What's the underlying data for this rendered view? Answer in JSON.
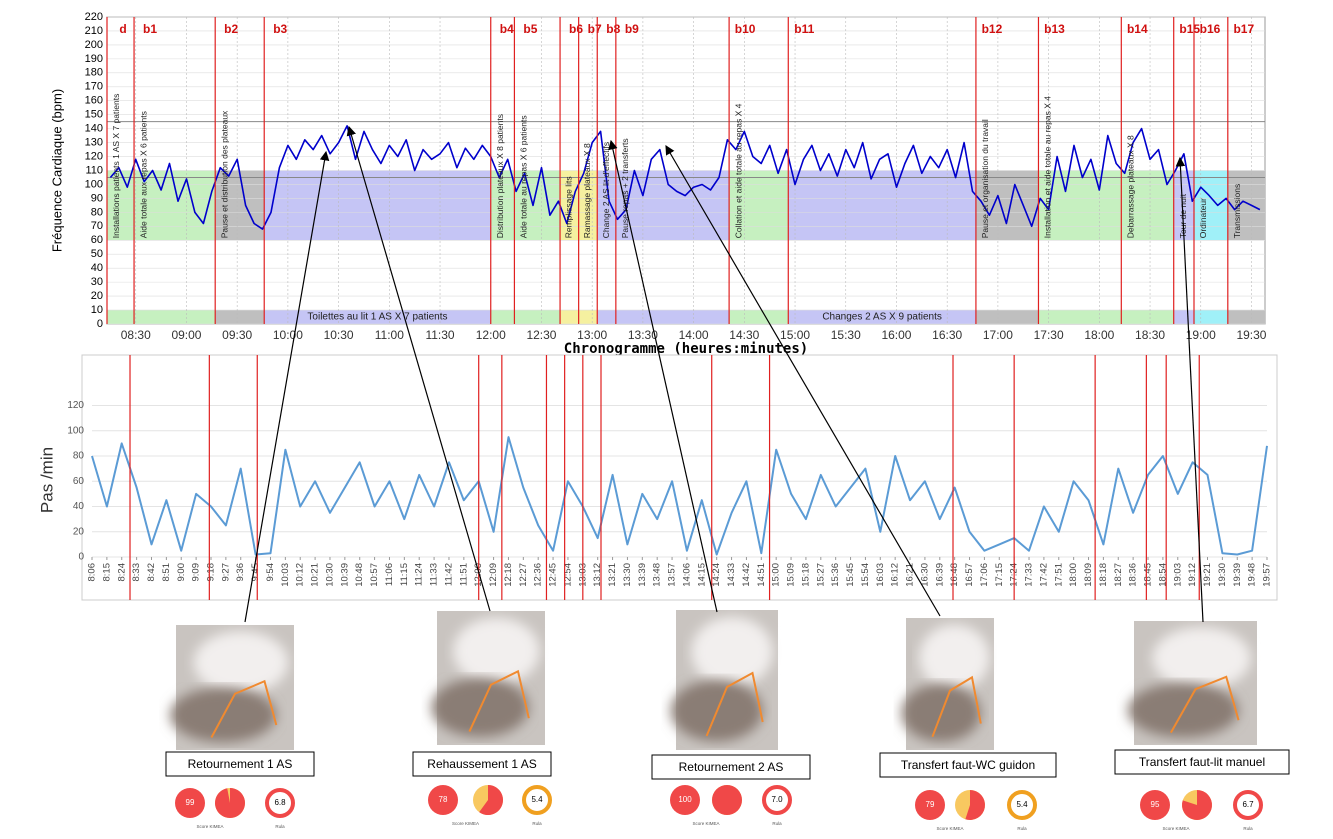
{
  "chart_data": [
    {
      "type": "line",
      "y_label": "Fréquence Cardiaque (bpm)",
      "x_label": "Chronogramme (heures:minutes)",
      "color": "#0000cc",
      "grid": true,
      "xlim": [
        "08:13",
        "19:38"
      ],
      "xticks": [
        "08:30",
        "09:00",
        "09:30",
        "10:00",
        "10:30",
        "11:00",
        "11:30",
        "12:00",
        "12:30",
        "13:00",
        "13:30",
        "14:00",
        "14:30",
        "15:00",
        "15:30",
        "16:00",
        "16:30",
        "17:00",
        "17:30",
        "18:00",
        "18:30",
        "19:00",
        "19:30"
      ],
      "ylim": [
        0,
        220
      ],
      "yticks": [
        0,
        10,
        20,
        30,
        40,
        50,
        60,
        70,
        80,
        90,
        100,
        110,
        120,
        130,
        140,
        150,
        160,
        170,
        180,
        190,
        200,
        210,
        220
      ],
      "hlines": [
        145,
        105
      ],
      "band_range": [
        60,
        110
      ],
      "strip_range": [
        0,
        10
      ],
      "phases": [
        {
          "label": "d",
          "start": "08:13",
          "color": "#c6f0c0",
          "activity": "Installations patients 1 AS X 7 patients"
        },
        {
          "label": "b1",
          "start": "08:29",
          "color": "#c6f0c0",
          "activity": "Aide totale aux repas X 6 patients"
        },
        {
          "label": "b2",
          "start": "09:17",
          "color": "#bfbfbf",
          "activity": "Pause et distribution des plateaux"
        },
        {
          "label": "b3",
          "start": "09:46",
          "color": "#c5c5f5",
          "strip_label": "Toilettes au lit 1 AS X 7 patients"
        },
        {
          "label": "b4",
          "start": "12:00",
          "color": "#c6f0c0",
          "activity": "Distribution plateaux X 8 patients"
        },
        {
          "label": "b5",
          "start": "12:14",
          "color": "#c6f0c0",
          "activity": "Aide totale au repas X 6 patients"
        },
        {
          "label": "b6",
          "start": "12:41",
          "color": "#f5f0a0",
          "activity": "Remplissage lits"
        },
        {
          "label": "b7",
          "start": "12:52",
          "color": "#f5f0a0",
          "activity": "Ramassage plateaux X 8"
        },
        {
          "label": "b8",
          "start": "13:03",
          "color": "#c5c5f5",
          "activity": "Change 2 AS lit d'effectifs"
        },
        {
          "label": "b9",
          "start": "13:14",
          "color": "#c5c5f5",
          "activity": "Pause repas + 2 transferts"
        },
        {
          "label": "b10",
          "start": "14:21",
          "color": "#c6f0c0",
          "activity": "Collation et aide totale au repas X 4"
        },
        {
          "label": "b11",
          "start": "14:56",
          "color": "#c5c5f5",
          "strip_label": "Changes 2 AS X 9 patients"
        },
        {
          "label": "b12",
          "start": "16:47",
          "color": "#bfbfbf",
          "activity": "Pause et organisation du travail"
        },
        {
          "label": "b13",
          "start": "17:24",
          "color": "#c6f0c0",
          "activity": "Installation et aide totale au repas X 4"
        },
        {
          "label": "b14",
          "start": "18:13",
          "color": "#c6f0c0",
          "activity": "Debarrassage plateaux X 8"
        },
        {
          "label": "b15",
          "start": "18:44",
          "color": "#c5c5f5",
          "activity": "Tour de nuit"
        },
        {
          "label": "b16",
          "start": "18:56",
          "color": "#a0f0f8",
          "activity": "Ordinateur"
        },
        {
          "label": "b17",
          "start": "19:16",
          "color": "#bfbfbf",
          "activity": "Transmissions"
        }
      ],
      "x": [
        "08:15",
        "08:20",
        "08:25",
        "08:30",
        "08:35",
        "08:40",
        "08:45",
        "08:50",
        "08:55",
        "09:00",
        "09:05",
        "09:10",
        "09:15",
        "09:20",
        "09:25",
        "09:30",
        "09:35",
        "09:40",
        "09:45",
        "09:50",
        "09:55",
        "10:00",
        "10:05",
        "10:10",
        "10:15",
        "10:20",
        "10:25",
        "10:30",
        "10:35",
        "10:40",
        "10:45",
        "10:50",
        "10:55",
        "11:00",
        "11:05",
        "11:10",
        "11:15",
        "11:20",
        "11:25",
        "11:30",
        "11:35",
        "11:40",
        "11:45",
        "11:50",
        "11:55",
        "12:00",
        "12:05",
        "12:10",
        "12:15",
        "12:20",
        "12:25",
        "12:30",
        "12:35",
        "12:40",
        "12:45",
        "12:50",
        "12:55",
        "13:00",
        "13:05",
        "13:10",
        "13:15",
        "13:20",
        "13:25",
        "13:30",
        "13:35",
        "13:40",
        "13:45",
        "13:50",
        "13:55",
        "14:00",
        "14:05",
        "14:10",
        "14:15",
        "14:20",
        "14:25",
        "14:30",
        "14:35",
        "14:40",
        "14:45",
        "14:50",
        "14:55",
        "15:00",
        "15:05",
        "15:10",
        "15:15",
        "15:20",
        "15:25",
        "15:30",
        "15:35",
        "15:40",
        "15:45",
        "15:50",
        "15:55",
        "16:00",
        "16:05",
        "16:10",
        "16:15",
        "16:20",
        "16:25",
        "16:30",
        "16:35",
        "16:40",
        "16:45",
        "16:50",
        "16:55",
        "17:00",
        "17:05",
        "17:10",
        "17:15",
        "17:20",
        "17:25",
        "17:30",
        "17:35",
        "17:40",
        "17:45",
        "17:50",
        "17:55",
        "18:00",
        "18:05",
        "18:10",
        "18:15",
        "18:20",
        "18:25",
        "18:30",
        "18:35",
        "18:40",
        "18:45",
        "18:50",
        "18:55",
        "19:00",
        "19:05",
        "19:10",
        "19:15",
        "19:20",
        "19:25",
        "19:30",
        "19:35"
      ],
      "values": [
        105,
        112,
        98,
        118,
        102,
        110,
        96,
        115,
        88,
        104,
        80,
        72,
        95,
        112,
        106,
        118,
        85,
        72,
        68,
        80,
        112,
        128,
        118,
        132,
        125,
        135,
        122,
        130,
        142,
        118,
        138,
        125,
        115,
        128,
        120,
        132,
        110,
        125,
        118,
        122,
        130,
        112,
        126,
        118,
        128,
        120,
        105,
        118,
        95,
        108,
        85,
        112,
        78,
        88,
        72,
        95,
        108,
        130,
        138,
        88,
        75,
        82,
        110,
        92,
        118,
        125,
        100,
        95,
        92,
        98,
        100,
        96,
        105,
        132,
        125,
        138,
        120,
        115,
        128,
        108,
        125,
        100,
        118,
        128,
        110,
        122,
        106,
        125,
        112,
        130,
        104,
        118,
        122,
        98,
        115,
        128,
        108,
        120,
        112,
        125,
        105,
        130,
        95,
        88,
        78,
        92,
        72,
        100,
        85,
        70,
        90,
        82,
        120,
        95,
        128,
        105,
        118,
        96,
        135,
        115,
        108,
        130,
        140,
        118,
        125,
        100,
        110,
        122,
        88,
        98,
        92,
        85,
        90,
        82,
        88,
        85,
        82
      ]
    },
    {
      "type": "line",
      "y_label": "Pas /min",
      "color": "#5b9bd5",
      "grid": true,
      "xlim": [
        "8:06",
        "19:57"
      ],
      "ylim": [
        0,
        160
      ],
      "yticks": [
        0,
        20,
        40,
        60,
        80,
        100,
        120
      ],
      "xticks": [
        "8:06",
        "8:15",
        "8:24",
        "8:33",
        "8:42",
        "8:51",
        "9:00",
        "9:09",
        "9:18",
        "9:27",
        "9:36",
        "9:45",
        "9:54",
        "10:03",
        "10:12",
        "10:21",
        "10:30",
        "10:39",
        "10:48",
        "10:57",
        "11:06",
        "11:15",
        "11:24",
        "11:33",
        "11:42",
        "11:51",
        "12:00",
        "12:09",
        "12:18",
        "12:27",
        "12:36",
        "12:45",
        "12:54",
        "13:03",
        "13:12",
        "13:21",
        "13:30",
        "13:39",
        "13:48",
        "13:57",
        "14:06",
        "14:15",
        "14:24",
        "14:33",
        "14:42",
        "14:51",
        "15:00",
        "15:09",
        "15:18",
        "15:27",
        "15:36",
        "15:45",
        "15:54",
        "16:03",
        "16:12",
        "16:21",
        "16:30",
        "16:39",
        "16:48",
        "16:57",
        "17:06",
        "17:15",
        "17:24",
        "17:33",
        "17:42",
        "17:51",
        "18:00",
        "18:09",
        "18:18",
        "18:27",
        "18:36",
        "18:45",
        "18:54",
        "19:03",
        "19:12",
        "19:21",
        "19:30",
        "19:39",
        "19:48",
        "19:57"
      ],
      "x": [
        "8:06",
        "8:15",
        "8:24",
        "8:33",
        "8:42",
        "8:51",
        "9:00",
        "9:09",
        "9:18",
        "9:27",
        "9:36",
        "9:45",
        "9:54",
        "10:03",
        "10:12",
        "10:21",
        "10:30",
        "10:39",
        "10:48",
        "10:57",
        "11:06",
        "11:15",
        "11:24",
        "11:33",
        "11:42",
        "11:51",
        "12:00",
        "12:09",
        "12:18",
        "12:27",
        "12:36",
        "12:45",
        "12:54",
        "13:03",
        "13:12",
        "13:21",
        "13:30",
        "13:39",
        "13:48",
        "13:57",
        "14:06",
        "14:15",
        "14:24",
        "14:33",
        "14:42",
        "14:51",
        "15:00",
        "15:09",
        "15:18",
        "15:27",
        "15:36",
        "15:45",
        "15:54",
        "16:03",
        "16:12",
        "16:21",
        "16:30",
        "16:39",
        "16:48",
        "16:57",
        "17:06",
        "17:15",
        "17:24",
        "17:33",
        "17:42",
        "17:51",
        "18:00",
        "18:09",
        "18:18",
        "18:27",
        "18:36",
        "18:45",
        "18:54",
        "19:03",
        "19:12",
        "19:21",
        "19:30",
        "19:39",
        "19:48",
        "19:57"
      ],
      "values": [
        80,
        40,
        90,
        55,
        10,
        45,
        5,
        50,
        40,
        25,
        70,
        2,
        3,
        85,
        40,
        60,
        35,
        55,
        75,
        40,
        60,
        30,
        65,
        40,
        75,
        45,
        60,
        20,
        95,
        55,
        25,
        5,
        60,
        40,
        15,
        65,
        10,
        50,
        30,
        60,
        5,
        45,
        2,
        35,
        60,
        3,
        85,
        50,
        30,
        65,
        40,
        55,
        70,
        20,
        80,
        45,
        60,
        30,
        55,
        20,
        5,
        10,
        15,
        5,
        40,
        20,
        60,
        45,
        10,
        70,
        35,
        65,
        80,
        50,
        75,
        65,
        3,
        2,
        5,
        88
      ]
    }
  ],
  "tasks": [
    {
      "label": "Retournement 1 AS",
      "score": "99",
      "rula": "6.8"
    },
    {
      "label": "Rehaussement 1 AS",
      "score": "78",
      "rula": "5.4"
    },
    {
      "label": "Retournement 2 AS",
      "score": "100",
      "rula": "7.0"
    },
    {
      "label": "Transfert faut-WC guidon",
      "score": "79",
      "rula": "5.4"
    },
    {
      "label": "Transfert faut-lit manuel",
      "score": "95",
      "rula": "6.7"
    }
  ],
  "score_caption": "Score KIMEA",
  "rula_caption": "Rula"
}
